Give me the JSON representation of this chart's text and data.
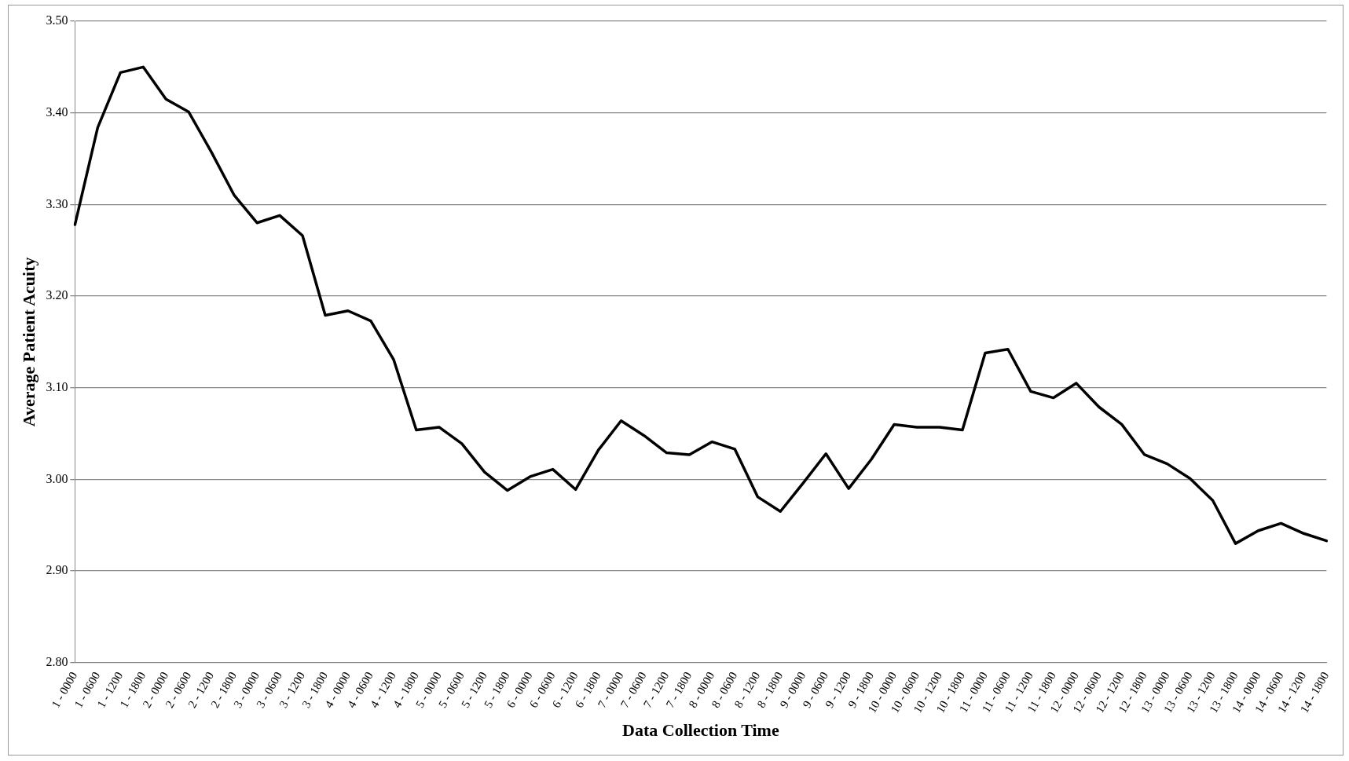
{
  "chart_data": {
    "type": "line",
    "xlabel": "Data Collection Time",
    "ylabel": "Average Patient Acuity",
    "categories": [
      "1 - 0000",
      "1 - 0600",
      "1 - 1200",
      "1 - 1800",
      "2 - 0000",
      "2 - 0600",
      "2 - 1200",
      "2 - 1800",
      "3 - 0000",
      "3 - 0600",
      "3 - 1200",
      "3 - 1800",
      "4 - 0000",
      "4 - 0600",
      "4 - 1200",
      "4 - 1800",
      "5 - 0000",
      "5 - 0600",
      "5 - 1200",
      "5 - 1800",
      "6 - 0000",
      "6 - 0600",
      "6 - 1200",
      "6 - 1800",
      "7 - 0000",
      "7 - 0600",
      "7 - 1200",
      "7 - 1800",
      "8 - 0000",
      "8 - 0600",
      "8 - 1200",
      "8 - 1800",
      "9 - 0000",
      "9 - 0600",
      "9 - 1200",
      "9 - 1800",
      "10 - 0000",
      "10 - 0600",
      "10 - 1200",
      "10 - 1800",
      "11 - 0000",
      "11 - 0600",
      "11 - 1200",
      "11 - 1800",
      "12 - 0000",
      "12 - 0600",
      "12 - 1200",
      "12 - 1800",
      "13 - 0000",
      "13 - 0600",
      "13 - 1200",
      "13 - 1800",
      "14 - 0000",
      "14 - 0600",
      "14 - 1200",
      "14 - 1800"
    ],
    "series": [
      {
        "color": "#000000",
        "values": [
          3.278,
          3.384,
          3.444,
          3.45,
          3.415,
          3.401,
          3.357,
          3.31,
          3.28,
          3.288,
          3.266,
          3.179,
          3.184,
          3.173,
          3.131,
          3.054,
          3.057,
          3.039,
          3.008,
          2.988,
          3.003,
          3.011,
          2.989,
          3.032,
          3.064,
          3.048,
          3.029,
          3.027,
          3.041,
          3.033,
          2.981,
          2.965,
          2.996,
          3.028,
          2.99,
          3.022,
          3.06,
          3.057,
          3.057,
          3.054,
          3.138,
          3.142,
          3.096,
          3.089,
          3.105,
          3.079,
          3.06,
          3.027,
          3.017,
          3.001,
          2.977,
          2.93,
          2.944,
          2.952,
          2.941,
          2.933
        ]
      }
    ],
    "ylim": [
      2.8,
      3.5
    ],
    "yticks": [
      {
        "value": 2.8,
        "label": "2.80"
      },
      {
        "value": 2.9,
        "label": "2.90"
      },
      {
        "value": 3,
        "label": "3.00"
      },
      {
        "value": 3.1,
        "label": "3.10"
      },
      {
        "value": 3.2,
        "label": "3.20"
      },
      {
        "value": 3.3,
        "label": "3.30"
      },
      {
        "value": 3.4,
        "label": "3.40"
      },
      {
        "value": 3.5,
        "label": "3.50"
      }
    ],
    "grid": "y",
    "legend": false,
    "marker": "none",
    "line_style": "solid"
  }
}
